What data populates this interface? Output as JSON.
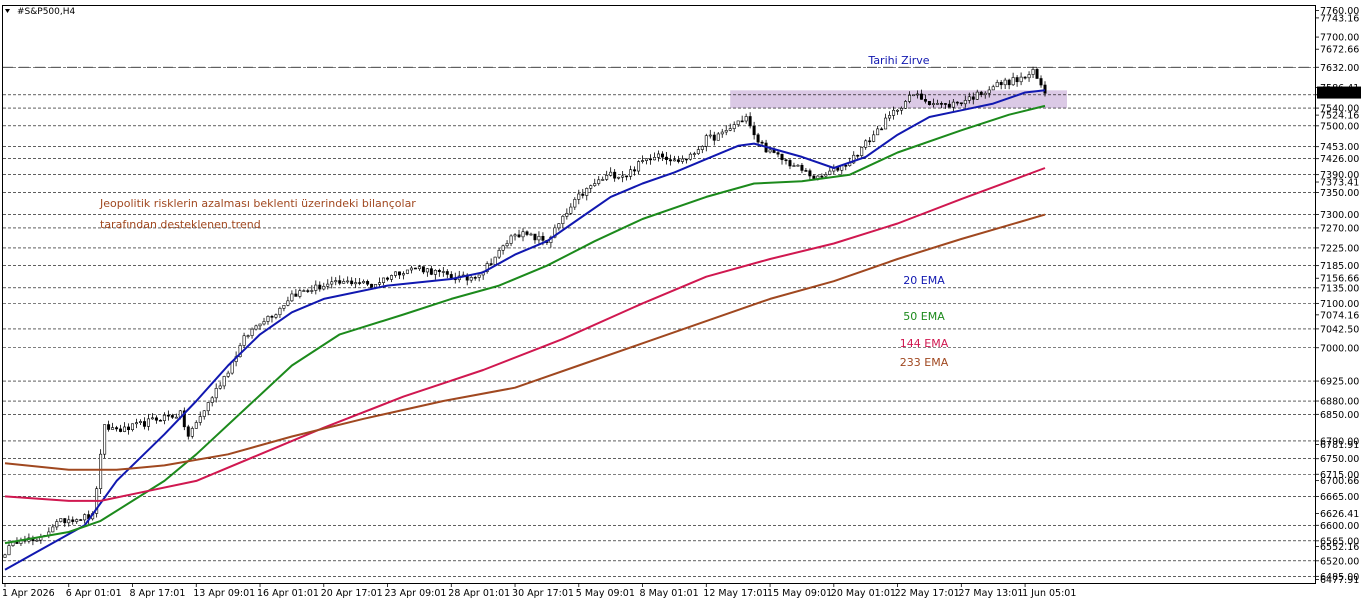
{
  "window": {
    "title": "#S&P500,H4"
  },
  "chart_data": {
    "type": "line",
    "title": "#S&P500,H4",
    "xlabel": "",
    "ylabel": "",
    "ylim": [
      6470,
      7770
    ],
    "grid": true,
    "y_ticks": [
      7760,
      7743.16,
      7700,
      7672.66,
      7632,
      7586.41,
      7570,
      7540,
      7524.16,
      7500,
      7453,
      7426,
      7390,
      7373.41,
      7350,
      7300,
      7270,
      7225,
      7185,
      7156.66,
      7135,
      7100,
      7074.16,
      7042.5,
      7000,
      6925,
      6880,
      6850,
      6790,
      6781.91,
      6750,
      6715,
      6700.66,
      6665,
      6626.41,
      6600,
      6565,
      6552.16,
      6520,
      6485,
      6477.91
    ],
    "dashed_levels": [
      7632,
      7570,
      7540,
      7500,
      7453,
      7426,
      7390,
      7350,
      7300,
      7270,
      7225,
      7185,
      7135,
      7100,
      7042.5,
      7000,
      6925,
      6880,
      6850,
      6790,
      6750,
      6715,
      6665,
      6600,
      6565,
      6520,
      6485
    ],
    "x_tick_labels": [
      "1 Apr 2026",
      "6 Apr 01:01",
      "8 Apr 17:01",
      "13 Apr 09:01",
      "16 Apr 01:01",
      "20 Apr 17:01",
      "23 Apr 09:01",
      "28 Apr 01:01",
      "30 Apr 17:01",
      "5 May 09:01",
      "8 May 01:01",
      "12 May 17:01",
      "15 May 09:01",
      "20 May 01:01",
      "22 May 17:01",
      "27 May 13:01",
      "1 Jun 05:01"
    ],
    "x_tick_index": [
      0,
      16,
      32,
      48,
      64,
      80,
      96,
      112,
      128,
      144,
      160,
      176,
      192,
      208,
      224,
      240,
      256
    ],
    "bar_count": 262,
    "price_anchors": [
      [
        0,
        6540
      ],
      [
        4,
        6575
      ],
      [
        8,
        6560
      ],
      [
        12,
        6600
      ],
      [
        16,
        6615
      ],
      [
        22,
        6620
      ],
      [
        25,
        6820
      ],
      [
        30,
        6815
      ],
      [
        35,
        6830
      ],
      [
        40,
        6845
      ],
      [
        44,
        6850
      ],
      [
        46,
        6800
      ],
      [
        48,
        6830
      ],
      [
        52,
        6890
      ],
      [
        56,
        6950
      ],
      [
        60,
        7020
      ],
      [
        64,
        7060
      ],
      [
        68,
        7080
      ],
      [
        72,
        7120
      ],
      [
        76,
        7130
      ],
      [
        80,
        7140
      ],
      [
        84,
        7145
      ],
      [
        88,
        7150
      ],
      [
        92,
        7140
      ],
      [
        96,
        7160
      ],
      [
        100,
        7175
      ],
      [
        104,
        7180
      ],
      [
        108,
        7170
      ],
      [
        112,
        7160
      ],
      [
        116,
        7155
      ],
      [
        120,
        7175
      ],
      [
        124,
        7215
      ],
      [
        128,
        7260
      ],
      [
        132,
        7250
      ],
      [
        136,
        7240
      ],
      [
        140,
        7290
      ],
      [
        144,
        7340
      ],
      [
        148,
        7370
      ],
      [
        152,
        7390
      ],
      [
        156,
        7390
      ],
      [
        160,
        7420
      ],
      [
        164,
        7440
      ],
      [
        168,
        7420
      ],
      [
        172,
        7430
      ],
      [
        176,
        7470
      ],
      [
        180,
        7480
      ],
      [
        184,
        7510
      ],
      [
        186,
        7520
      ],
      [
        188,
        7475
      ],
      [
        192,
        7440
      ],
      [
        196,
        7420
      ],
      [
        200,
        7400
      ],
      [
        204,
        7380
      ],
      [
        208,
        7400
      ],
      [
        212,
        7420
      ],
      [
        216,
        7460
      ],
      [
        220,
        7500
      ],
      [
        224,
        7540
      ],
      [
        228,
        7570
      ],
      [
        232,
        7555
      ],
      [
        236,
        7545
      ],
      [
        240,
        7555
      ],
      [
        244,
        7570
      ],
      [
        248,
        7590
      ],
      [
        252,
        7600
      ],
      [
        255,
        7605
      ],
      [
        258,
        7620
      ],
      [
        260,
        7590
      ],
      [
        261,
        7575
      ]
    ],
    "series": [
      {
        "name": "20 EMA",
        "color": "#1118b0",
        "period": 20,
        "values": [
          [
            0,
            6500
          ],
          [
            8,
            6540
          ],
          [
            20,
            6600
          ],
          [
            28,
            6700
          ],
          [
            40,
            6805
          ],
          [
            48,
            6880
          ],
          [
            56,
            6960
          ],
          [
            64,
            7030
          ],
          [
            72,
            7080
          ],
          [
            80,
            7110
          ],
          [
            96,
            7140
          ],
          [
            112,
            7155
          ],
          [
            120,
            7170
          ],
          [
            128,
            7210
          ],
          [
            136,
            7240
          ],
          [
            144,
            7290
          ],
          [
            152,
            7340
          ],
          [
            160,
            7370
          ],
          [
            168,
            7395
          ],
          [
            176,
            7425
          ],
          [
            184,
            7455
          ],
          [
            188,
            7460
          ],
          [
            192,
            7450
          ],
          [
            200,
            7430
          ],
          [
            208,
            7405
          ],
          [
            216,
            7430
          ],
          [
            224,
            7480
          ],
          [
            232,
            7520
          ],
          [
            240,
            7535
          ],
          [
            248,
            7550
          ],
          [
            256,
            7575
          ],
          [
            261,
            7580
          ]
        ]
      },
      {
        "name": "50 EMA",
        "color": "#1c8a1c",
        "period": 50,
        "values": [
          [
            0,
            6560
          ],
          [
            16,
            6585
          ],
          [
            24,
            6610
          ],
          [
            40,
            6700
          ],
          [
            48,
            6760
          ],
          [
            60,
            6860
          ],
          [
            72,
            6960
          ],
          [
            84,
            7030
          ],
          [
            100,
            7075
          ],
          [
            112,
            7110
          ],
          [
            124,
            7140
          ],
          [
            136,
            7185
          ],
          [
            148,
            7240
          ],
          [
            160,
            7290
          ],
          [
            176,
            7340
          ],
          [
            188,
            7370
          ],
          [
            200,
            7375
          ],
          [
            212,
            7390
          ],
          [
            224,
            7440
          ],
          [
            240,
            7490
          ],
          [
            252,
            7525
          ],
          [
            261,
            7545
          ]
        ]
      },
      {
        "name": "144 EMA",
        "color": "#d01850",
        "period": 144,
        "values": [
          [
            0,
            6665
          ],
          [
            16,
            6655
          ],
          [
            24,
            6655
          ],
          [
            32,
            6670
          ],
          [
            48,
            6700
          ],
          [
            64,
            6760
          ],
          [
            80,
            6820
          ],
          [
            100,
            6890
          ],
          [
            120,
            6950
          ],
          [
            140,
            7020
          ],
          [
            160,
            7100
          ],
          [
            176,
            7160
          ],
          [
            192,
            7200
          ],
          [
            208,
            7235
          ],
          [
            224,
            7280
          ],
          [
            240,
            7335
          ],
          [
            261,
            7405
          ]
        ]
      },
      {
        "name": "233 EMA",
        "color": "#a04820",
        "period": 233,
        "values": [
          [
            0,
            6740
          ],
          [
            16,
            6725
          ],
          [
            28,
            6725
          ],
          [
            40,
            6735
          ],
          [
            56,
            6760
          ],
          [
            72,
            6800
          ],
          [
            90,
            6840
          ],
          [
            110,
            6880
          ],
          [
            128,
            6910
          ],
          [
            144,
            6960
          ],
          [
            160,
            7010
          ],
          [
            176,
            7060
          ],
          [
            192,
            7110
          ],
          [
            208,
            7150
          ],
          [
            224,
            7200
          ],
          [
            240,
            7245
          ],
          [
            261,
            7300
          ]
        ]
      }
    ],
    "zone": {
      "from_index": 182,
      "to_index": 261,
      "low": 7540,
      "high": 7580,
      "color": "#d5bfe0"
    },
    "peak_line": {
      "label": "Tarihi Zirve",
      "level": 7632
    }
  },
  "annotations": {
    "peak": "Tarihi Zirve",
    "trend_line1": "Jeopolitik risklerin azalması beklenti üzerindeki bilançolar",
    "trend_line2": "tarafından desteklenen trend"
  },
  "legend": {
    "ema20": {
      "text": "20 EMA",
      "color": "#1118b0"
    },
    "ema50": {
      "text": "50 EMA",
      "color": "#1c8a1c"
    },
    "ema144": {
      "text": "144 EMA",
      "color": "#d01850"
    },
    "ema233": {
      "text": "233 EMA",
      "color": "#a04820"
    }
  },
  "colors": {
    "axis": "#000000",
    "grid": "#000000",
    "candle": "#000000",
    "annotation_text": "#a04820",
    "peak_text": "#1118b0",
    "zone": "#d5bfe0"
  }
}
